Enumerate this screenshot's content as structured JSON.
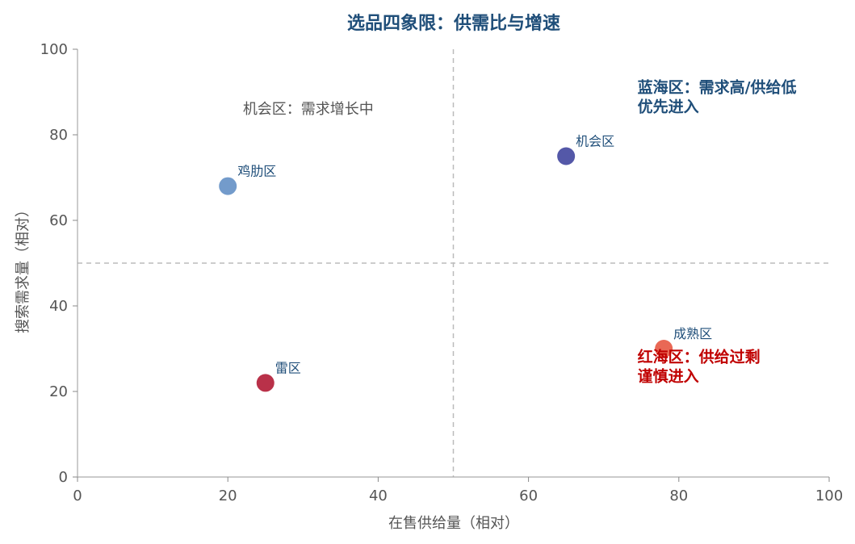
{
  "chart_data": {
    "type": "scatter",
    "title": "选品四象限：供需比与增速",
    "xlabel": "在售供给量（相对）",
    "ylabel": "搜索需求量（相对）",
    "xlim": [
      0,
      100
    ],
    "ylim": [
      0,
      100
    ],
    "xticks": [
      0,
      20,
      40,
      60,
      80,
      100
    ],
    "yticks": [
      0,
      20,
      40,
      60,
      80,
      100
    ],
    "grid": false,
    "reference_lines": {
      "x": 50,
      "y": 50
    },
    "points": [
      {
        "label": "鸡肋区",
        "x": 20,
        "y": 68,
        "color": "#6b96c8"
      },
      {
        "label": "机会区",
        "x": 65,
        "y": 75,
        "color": "#4b4fa3"
      },
      {
        "label": "雷区",
        "x": 25,
        "y": 22,
        "color": "#b5263f"
      },
      {
        "label": "成熟区",
        "x": 78,
        "y": 30,
        "color": "#e8604c"
      }
    ],
    "annotations": [
      {
        "lines": [
          "机会区：需求增长中"
        ],
        "x": 22,
        "y": 86,
        "style": "neutral"
      },
      {
        "lines": [
          "蓝海区：需求高/供给低",
          "优先进入"
        ],
        "x": 74.5,
        "y": 91,
        "style": "blue"
      },
      {
        "lines": [
          "红海区：供给过剩",
          "谨慎进入"
        ],
        "x": 74.5,
        "y": 28,
        "style": "red"
      }
    ]
  }
}
